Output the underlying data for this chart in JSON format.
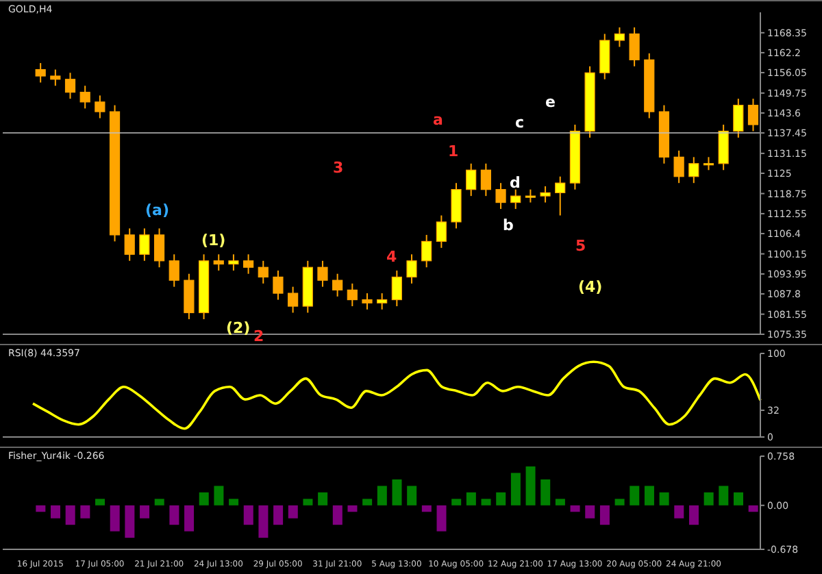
{
  "chart_data": [
    {
      "type": "candlestick",
      "title": "GOLD,H4",
      "color": "#ffa500",
      "categories": [
        null,
        null,
        null,
        null,
        null,
        null,
        null,
        null,
        null,
        null,
        null,
        null,
        null,
        null,
        null,
        null,
        null,
        null,
        null,
        null,
        null,
        null,
        null,
        null,
        null,
        null,
        null,
        null,
        null,
        null,
        null,
        null,
        null,
        null,
        null,
        null,
        null,
        null,
        null,
        null,
        null,
        null,
        null,
        null,
        null,
        null,
        null,
        null,
        null
      ],
      "ohlc": [
        [
          1157,
          1159,
          1153,
          1155
        ],
        [
          1155,
          1157,
          1152,
          1154
        ],
        [
          1154,
          1156,
          1148,
          1150
        ],
        [
          1150,
          1152,
          1145,
          1147
        ],
        [
          1147,
          1149,
          1142,
          1144
        ],
        [
          1144,
          1146,
          1104,
          1106
        ],
        [
          1106,
          1108,
          1098,
          1100
        ],
        [
          1100,
          1108,
          1098,
          1106
        ],
        [
          1106,
          1108,
          1096,
          1098
        ],
        [
          1098,
          1100,
          1090,
          1092
        ],
        [
          1092,
          1094,
          1080,
          1082
        ],
        [
          1082,
          1100,
          1080,
          1098
        ],
        [
          1098,
          1100,
          1095,
          1097
        ],
        [
          1097,
          1100,
          1095,
          1098
        ],
        [
          1098,
          1100,
          1094,
          1096
        ],
        [
          1096,
          1098,
          1091,
          1093
        ],
        [
          1093,
          1095,
          1086,
          1088
        ],
        [
          1088,
          1090,
          1082,
          1084
        ],
        [
          1084,
          1098,
          1082,
          1096
        ],
        [
          1096,
          1098,
          1090,
          1092
        ],
        [
          1092,
          1094,
          1087,
          1089
        ],
        [
          1089,
          1091,
          1084,
          1086
        ],
        [
          1086,
          1088,
          1083,
          1085
        ],
        [
          1085,
          1088,
          1083,
          1086
        ],
        [
          1086,
          1095,
          1084,
          1093
        ],
        [
          1093,
          1100,
          1091,
          1098
        ],
        [
          1098,
          1106,
          1096,
          1104
        ],
        [
          1104,
          1112,
          1102,
          1110
        ],
        [
          1110,
          1122,
          1108,
          1120
        ],
        [
          1120,
          1128,
          1118,
          1126
        ],
        [
          1126,
          1128,
          1118,
          1120
        ],
        [
          1120,
          1122,
          1114,
          1116
        ],
        [
          1116,
          1120,
          1114,
          1118
        ],
        [
          1118,
          1120,
          1116,
          1118
        ],
        [
          1118,
          1121,
          1116,
          1119
        ],
        [
          1119,
          1124,
          1112,
          1122
        ],
        [
          1122,
          1140,
          1120,
          1138
        ],
        [
          1138,
          1158,
          1136,
          1156
        ],
        [
          1156,
          1168,
          1154,
          1166
        ],
        [
          1166,
          1170,
          1164,
          1168
        ],
        [
          1168,
          1170,
          1158,
          1160
        ],
        [
          1160,
          1162,
          1142,
          1144
        ],
        [
          1144,
          1146,
          1128,
          1130
        ],
        [
          1130,
          1132,
          1122,
          1124
        ],
        [
          1124,
          1130,
          1122,
          1128
        ],
        [
          1128,
          1130,
          1126,
          1128
        ],
        [
          1128,
          1140,
          1126,
          1138
        ],
        [
          1138,
          1148,
          1136,
          1146
        ],
        [
          1146,
          1148,
          1138,
          1140
        ]
      ],
      "ylim": [
        1075.35,
        1174.65
      ],
      "yticks": [
        1075.35,
        1081.55,
        1087.8,
        1093.95,
        1100.15,
        1106.4,
        1112.55,
        1118.75,
        1125.0,
        1131.15,
        1137.45,
        1143.6,
        1149.75,
        1156.05,
        1162.2,
        1168.35
      ],
      "ref_lines": [
        {
          "axis": "y",
          "value": 1137.45,
          "color": "#c0c0c0"
        }
      ],
      "annotations": [
        "(a)",
        "(1)",
        "(2)",
        "(4)",
        "1",
        "2",
        "3",
        "4",
        "5",
        "a",
        "b",
        "c",
        "d",
        "e"
      ],
      "tick_labels": "y"
    },
    {
      "type": "line",
      "title": "RSI(8) 44.3597",
      "categories": [
        null,
        null,
        null,
        null,
        null,
        null,
        null,
        null,
        null,
        null,
        null,
        null,
        null,
        null,
        null,
        null,
        null,
        null,
        null,
        null,
        null,
        null,
        null,
        null,
        null,
        null,
        null,
        null,
        null,
        null,
        null,
        null,
        null,
        null,
        null,
        null,
        null,
        null,
        null,
        null,
        null,
        null,
        null,
        null,
        null,
        null,
        null,
        null,
        null
      ],
      "series": [
        {
          "color": "#ffff00",
          "values": [
            40,
            30,
            20,
            15,
            25,
            45,
            60,
            50,
            35,
            20,
            10,
            30,
            55,
            60,
            45,
            50,
            40,
            55,
            70,
            50,
            45,
            35,
            55,
            50,
            60,
            75,
            80,
            60,
            55,
            50,
            65,
            55,
            60,
            55,
            50,
            70,
            85,
            90,
            85,
            60,
            55,
            35,
            15,
            25,
            50,
            70,
            65,
            75,
            44
          ]
        }
      ],
      "ylim": [
        0,
        100
      ],
      "yticks": [
        0,
        32,
        100
      ],
      "tick_labels": "y",
      "marker": "none"
    },
    {
      "type": "bar",
      "title": "Fisher_Yur4ik -0.266",
      "categories": [
        "16 Jul 2015",
        null,
        null,
        null,
        "17 Jul 05:00",
        null,
        null,
        null,
        "21 Jul 21:00",
        null,
        null,
        null,
        "24 Jul 13:00",
        null,
        null,
        null,
        "29 Jul 05:00",
        null,
        null,
        null,
        "31 Jul 21:00",
        null,
        null,
        null,
        "5 Aug 13:00",
        null,
        null,
        null,
        "10 Aug 05:00",
        null,
        null,
        null,
        "12 Aug 21:00",
        null,
        null,
        null,
        "17 Aug 13:00",
        null,
        null,
        null,
        "20 Aug 05:00",
        null,
        null,
        null,
        "24 Aug 21:00",
        null,
        null,
        null,
        null
      ],
      "values": [
        -0.1,
        -0.2,
        -0.3,
        -0.2,
        0.1,
        -0.4,
        -0.5,
        -0.2,
        0.1,
        -0.3,
        -0.4,
        0.2,
        0.3,
        0.1,
        -0.3,
        -0.5,
        -0.3,
        -0.2,
        0.1,
        0.2,
        -0.3,
        -0.1,
        0.1,
        0.3,
        0.4,
        0.3,
        -0.1,
        -0.4,
        0.1,
        0.2,
        0.1,
        0.2,
        0.5,
        0.6,
        0.4,
        0.1,
        -0.1,
        -0.2,
        -0.3,
        0.1,
        0.3,
        0.3,
        0.2,
        -0.2,
        -0.3,
        0.2,
        0.3,
        0.2,
        -0.1
      ],
      "colors": [
        "#800080",
        "#800080",
        "#800080",
        "#800080",
        "#008000",
        "#800080",
        "#800080",
        "#800080",
        "#008000",
        "#800080",
        "#800080",
        "#008000",
        "#008000",
        "#008000",
        "#800080",
        "#800080",
        "#800080",
        "#800080",
        "#008000",
        "#008000",
        "#800080",
        "#800080",
        "#008000",
        "#008000",
        "#008000",
        "#008000",
        "#800080",
        "#800080",
        "#008000",
        "#008000",
        "#008000",
        "#008000",
        "#008000",
        "#008000",
        "#008000",
        "#008000",
        "#800080",
        "#800080",
        "#800080",
        "#008000",
        "#008000",
        "#008000",
        "#008000",
        "#800080",
        "#800080",
        "#008000",
        "#008000",
        "#008000",
        "#800080"
      ],
      "ylim": [
        -0.678,
        0.758
      ],
      "yticks": [
        -0.678,
        {
          "value": 0,
          "label": "0.00"
        },
        0.758
      ]
    }
  ]
}
